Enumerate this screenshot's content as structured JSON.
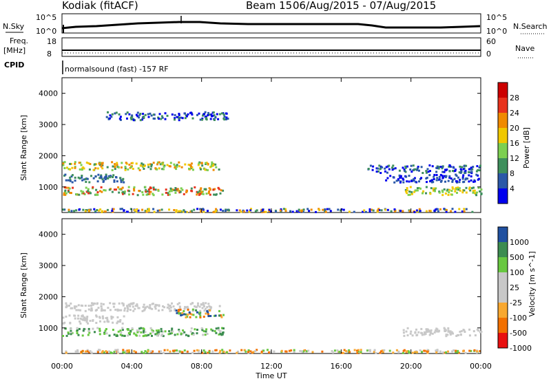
{
  "header": {
    "station": "Kodiak (fitACF)",
    "beam_label": "Beam 15",
    "date_range": "06/Aug/2015 - 07/Aug/2015"
  },
  "top_panels": {
    "nsky_label": "N.Sky",
    "nsky_ticks": [
      "10^5",
      "10^0"
    ],
    "nsearch_label": "N.Search",
    "nsearch_ticks": [
      "10^5",
      "10^0"
    ],
    "freq_label": "Freq.",
    "freq_unit": "[MHz]",
    "freq_ticks": [
      "18",
      "8"
    ],
    "nave_label": "Nave",
    "nave_ticks": [
      "60",
      "0"
    ],
    "cpid_label": "CPID",
    "cpid_text": "normalsound (fast) -157 RF"
  },
  "colors": {
    "power": [
      "#0000ee",
      "#2a58a8",
      "#3e8f5c",
      "#7ccf50",
      "#f0c800",
      "#f08a00",
      "#e8321c",
      "#cc0000"
    ],
    "velocity": [
      "#e81010",
      "#f27000",
      "#f8a830",
      "#c8c8c8",
      "#c8c8c8",
      "#68c840",
      "#3c8c50",
      "#2050a0"
    ]
  },
  "chart_data": [
    {
      "type": "heatmap",
      "ylabel": "Slant Range [km]",
      "xlabel": "Time UT",
      "xlim": [
        "00:00",
        "00:00"
      ],
      "x_ticks": [
        "00:00",
        "04:00",
        "08:00",
        "12:00",
        "16:00",
        "20:00",
        "00:00"
      ],
      "ylim": [
        180,
        4500
      ],
      "y_ticks": [
        1000,
        2000,
        3000,
        4000
      ],
      "colorbar_label": "Power [dB]",
      "colorbar_ticks": [
        "4",
        "8",
        "12",
        "16",
        "20",
        "24",
        "28"
      ],
      "scatter_bands": [
        {
          "range_km": 1700,
          "from_hour": 0,
          "to_hour": 9,
          "level": "12-24 dB"
        },
        {
          "range_km": 1300,
          "from_hour": 0,
          "to_hour": 3.5,
          "level": "8-12 dB"
        },
        {
          "range_km": 900,
          "from_hour": 0,
          "to_hour": 9.2,
          "level": "8-28 dB"
        },
        {
          "range_km": 3300,
          "from_hour": 2.5,
          "to_hour": 9.5,
          "level": "4-12 dB"
        },
        {
          "range_km": 1600,
          "from_hour": 17.5,
          "to_hour": 24,
          "level": "4-12 dB"
        },
        {
          "range_km": 1300,
          "from_hour": 18.5,
          "to_hour": 24,
          "level": "4-8 dB"
        },
        {
          "range_km": 900,
          "from_hour": 19.5,
          "to_hour": 24,
          "level": "8-16 dB"
        },
        {
          "range_km": 250,
          "from_hour": 0,
          "to_hour": 24,
          "level": "4-24 dB"
        }
      ]
    },
    {
      "type": "heatmap",
      "ylabel": "Slant Range [km]",
      "xlabel": "Time UT",
      "xlim": [
        "00:00",
        "00:00"
      ],
      "x_ticks": [
        "00:00",
        "04:00",
        "08:00",
        "12:00",
        "16:00",
        "20:00",
        "00:00"
      ],
      "ylim": [
        180,
        4500
      ],
      "y_ticks": [
        1000,
        2000,
        3000,
        4000
      ],
      "colorbar_label": "Velocity [m s^-1]",
      "colorbar_ticks": [
        "1000",
        "500",
        "100",
        "25",
        "-25",
        "-100",
        "-500",
        "-1000"
      ],
      "scatter_bands": [
        {
          "range_km": 1700,
          "from_hour": 0,
          "to_hour": 9,
          "level": "-25 to 25 m/s"
        },
        {
          "range_km": 1300,
          "from_hour": 0,
          "to_hour": 3.5,
          "level": "-25 to 25 m/s"
        },
        {
          "range_km": 1500,
          "from_hour": 6.5,
          "to_hour": 9.2,
          "level": "-100 to 1000 m/s"
        },
        {
          "range_km": 900,
          "from_hour": 0,
          "to_hour": 9.2,
          "level": "-25 to 100 m/s"
        },
        {
          "range_km": 900,
          "from_hour": 19.5,
          "to_hour": 24,
          "level": "-25 to 25 m/s"
        },
        {
          "range_km": 250,
          "from_hour": 0,
          "to_hour": 24,
          "level": "-100 to 100 m/s"
        }
      ]
    }
  ]
}
